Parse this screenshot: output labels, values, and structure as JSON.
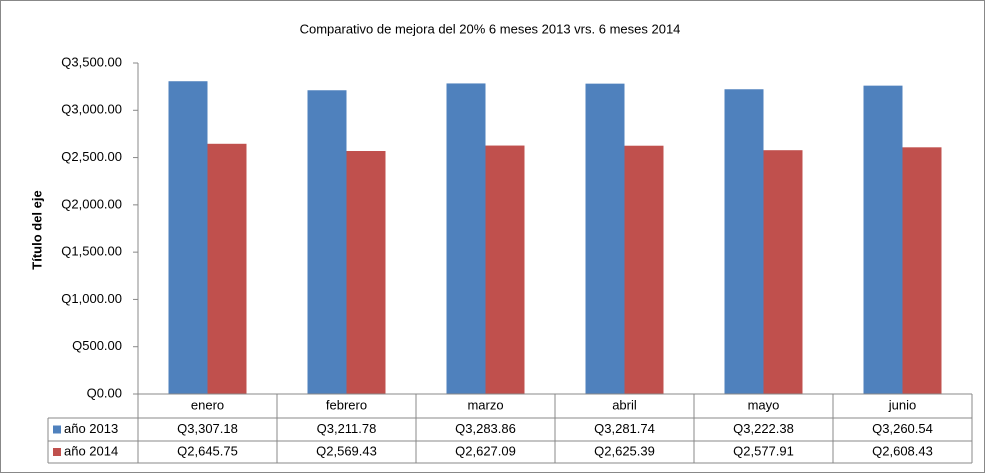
{
  "chart_data": {
    "type": "bar",
    "title": "Comparativo de mejora del 20% 6 meses 2013 vrs. 6 meses 2014",
    "y_label": "Título del eje",
    "categories": [
      "enero",
      "febrero",
      "marzo",
      "abril",
      "mayo",
      "junio"
    ],
    "series": [
      {
        "name": "año 2013",
        "color": "#4f81bd",
        "values": [
          3307.18,
          3211.78,
          3283.86,
          3281.74,
          3222.38,
          3260.54
        ],
        "value_labels": [
          "Q3,307.18",
          "Q3,211.78",
          "Q3,283.86",
          "Q3,281.74",
          "Q3,222.38",
          "Q3,260.54"
        ]
      },
      {
        "name": "año 2014",
        "color": "#c0504d",
        "values": [
          2645.75,
          2569.43,
          2627.09,
          2625.39,
          2577.91,
          2608.43
        ],
        "value_labels": [
          "Q2,645.75",
          "Q2,569.43",
          "Q2,627.09",
          "Q2,625.39",
          "Q2,577.91",
          "Q2,608.43"
        ]
      }
    ],
    "ylim": [
      0,
      3500
    ],
    "yticks": [
      {
        "value": 0,
        "label": "Q0.00"
      },
      {
        "value": 500,
        "label": "Q500.00"
      },
      {
        "value": 1000,
        "label": "Q1,000.00"
      },
      {
        "value": 1500,
        "label": "Q1,500.00"
      },
      {
        "value": 2000,
        "label": "Q2,000.00"
      },
      {
        "value": 2500,
        "label": "Q2,500.00"
      },
      {
        "value": 3000,
        "label": "Q3,000.00"
      },
      {
        "value": 3500,
        "label": "Q3,500.00"
      }
    ],
    "grid": false
  }
}
